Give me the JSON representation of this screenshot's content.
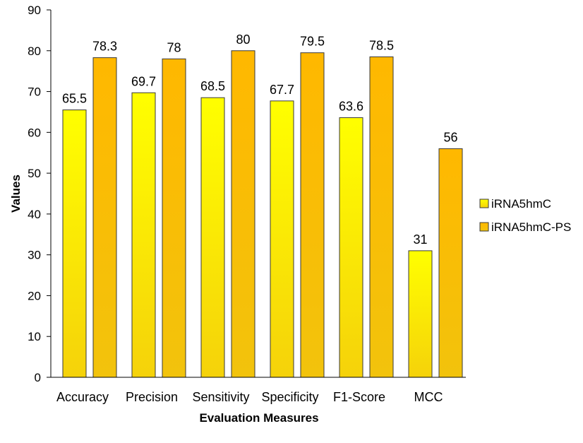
{
  "chart_data": {
    "type": "bar",
    "title": "",
    "xlabel": "Evaluation Measures",
    "ylabel": "Values",
    "ylim": [
      0,
      90
    ],
    "yticks": [
      0,
      10,
      20,
      30,
      40,
      50,
      60,
      70,
      80,
      90
    ],
    "categories": [
      "Accuracy",
      "Precision",
      "Sensitivity",
      "Specificity",
      "F1-Score",
      "MCC"
    ],
    "series": [
      {
        "name": "iRNA5hmC",
        "values": [
          65.5,
          69.7,
          68.5,
          67.7,
          63.6,
          31
        ],
        "labels": [
          "65.5",
          "69.7",
          "68.5",
          "67.7",
          "63.6",
          "31"
        ],
        "color_top": "#FFFF00",
        "color_bottom": "#F5D20A"
      },
      {
        "name": "iRNA5hmC-PS",
        "values": [
          78.3,
          78,
          80,
          79.5,
          78.5,
          56
        ],
        "labels": [
          "78.3",
          "78",
          "80",
          "79.5",
          "78.5",
          "56"
        ],
        "color_top": "#FFB800",
        "color_bottom": "#F2C30C"
      }
    ],
    "legend_position": "right",
    "grid": false
  }
}
